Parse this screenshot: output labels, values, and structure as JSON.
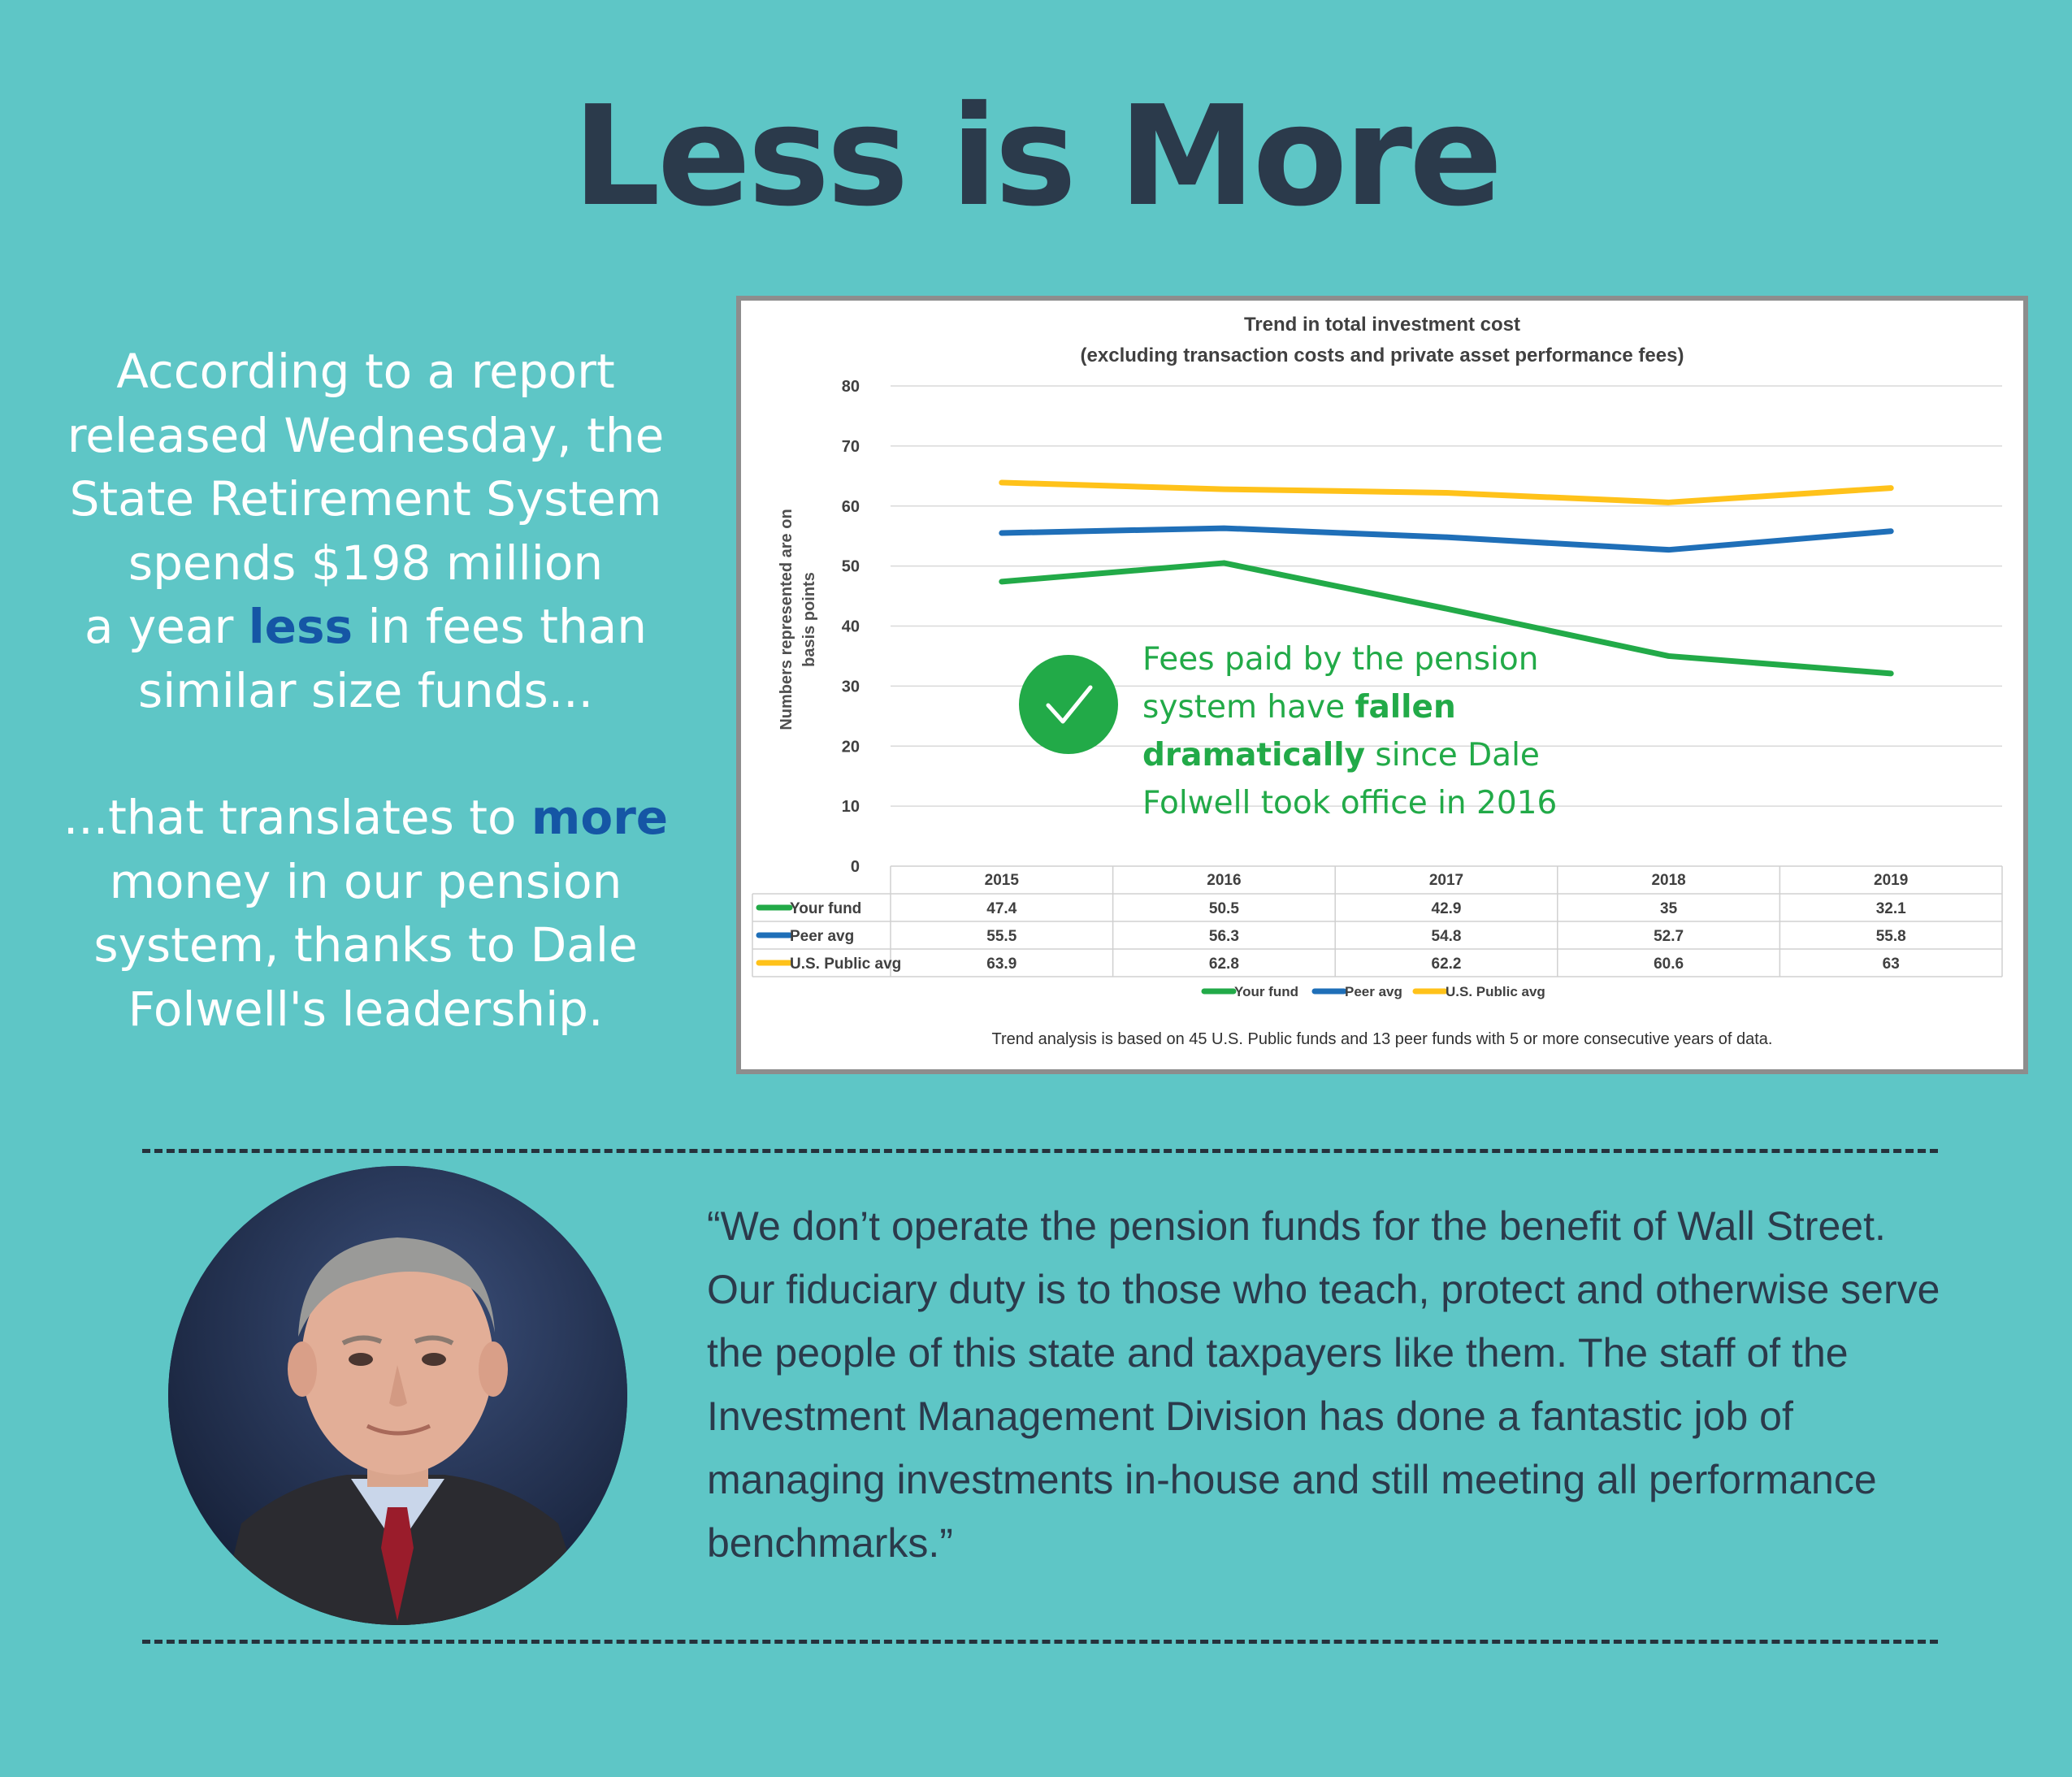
{
  "page": {
    "title": "Less is More",
    "left_text": {
      "line1": "According to a report",
      "line2": "released Wednesday, the",
      "line3": "State Retirement System",
      "line4": "spends $198 million",
      "line5_pre": "a year ",
      "line5_hl": "less",
      "line5_post": " in fees than",
      "line6": "similar size funds...",
      "line7_pre": "...that translates to ",
      "line7_hl": "more",
      "line8": "money in our pension",
      "line9": "system, thanks to Dale",
      "line10": "Folwell's leadership."
    },
    "annotation": {
      "line1": "Fees paid by the pension",
      "line2_pre": "system have ",
      "line2_bold": "fallen",
      "line3_bold": "dramatically",
      "line3_post": " since Dale",
      "line4": "Folwell took office in 2016"
    },
    "footnote": "Trend analysis is based on 45 U.S. Public funds and 13 peer funds with 5 or more consecutive years of data.",
    "quote": "“We don’t operate the pension funds for the benefit of Wall Street. Our fiduciary duty is to those who teach, protect and otherwise serve the people of this state and taxpayers like them. The staff of the Investment Management Division has done a fantastic job of managing investments in-house and still meeting all performance benchmarks.”",
    "colors": {
      "background": "#5ec6c6",
      "title": "#2b3a4b",
      "highlight": "#1556a5",
      "annotation": "#22aa48"
    }
  },
  "chart_data": {
    "type": "line",
    "title": "Trend in total investment cost",
    "subtitle": "(excluding transaction costs and private asset performance fees)",
    "ylabel_line1": "Numbers represented are on",
    "ylabel_line2": "basis points",
    "ylim": [
      0,
      80
    ],
    "yticks": [
      0,
      10,
      20,
      30,
      40,
      50,
      60,
      70,
      80
    ],
    "grid": true,
    "legend_position": "bottom",
    "categories": [
      "2015",
      "2016",
      "2017",
      "2018",
      "2019"
    ],
    "series": [
      {
        "name": "Your fund",
        "color": "#22aa48",
        "values": [
          47.4,
          50.5,
          42.9,
          35,
          32.1
        ],
        "labels": [
          "47.4",
          "50.5",
          "42.9",
          "35",
          "32.1"
        ]
      },
      {
        "name": "Peer avg",
        "color": "#1f6fb8",
        "values": [
          55.5,
          56.3,
          54.8,
          52.7,
          55.8
        ],
        "labels": [
          "55.5",
          "56.3",
          "54.8",
          "52.7",
          "55.8"
        ]
      },
      {
        "name": "U.S. Public avg",
        "color": "#ffc21a",
        "values": [
          63.9,
          62.8,
          62.2,
          60.6,
          63
        ],
        "labels": [
          "63.9",
          "62.8",
          "62.2",
          "60.6",
          "63"
        ]
      }
    ]
  }
}
